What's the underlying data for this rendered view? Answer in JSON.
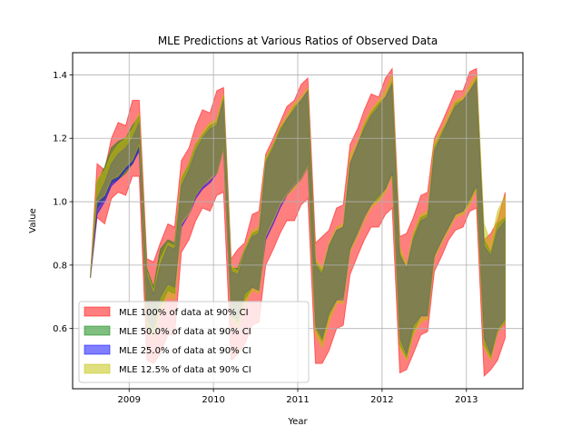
{
  "chart_data": {
    "type": "area",
    "title": "MLE Predictions at Various Ratios of Observed Data",
    "xlabel": "Year",
    "ylabel": "Value",
    "xlim": [
      2008.33,
      2013.67
    ],
    "ylim": [
      0.41,
      1.47
    ],
    "x_ticks": [
      2009,
      2010,
      2011,
      2012,
      2013
    ],
    "x_tick_labels": [
      "2009",
      "2010",
      "2011",
      "2012",
      "2013"
    ],
    "y_ticks": [
      0.6,
      0.8,
      1.0,
      1.2,
      1.4
    ],
    "y_tick_labels": [
      "0.6",
      "0.8",
      "1.0",
      "1.2",
      "1.4"
    ],
    "grid": true,
    "legend_position": "lower-left",
    "x": [
      2008.54,
      2008.62,
      2008.71,
      2008.79,
      2008.87,
      2008.96,
      2009.04,
      2009.12,
      2009.21,
      2009.29,
      2009.37,
      2009.46,
      2009.54,
      2009.62,
      2009.71,
      2009.79,
      2009.87,
      2009.96,
      2010.04,
      2010.12,
      2010.21,
      2010.29,
      2010.37,
      2010.46,
      2010.54,
      2010.62,
      2010.71,
      2010.79,
      2010.87,
      2010.96,
      2011.04,
      2011.12,
      2011.21,
      2011.29,
      2011.37,
      2011.46,
      2011.54,
      2011.62,
      2011.71,
      2011.79,
      2011.87,
      2011.96,
      2012.04,
      2012.12,
      2012.21,
      2012.29,
      2012.37,
      2012.46,
      2012.54,
      2012.62,
      2012.71,
      2012.79,
      2012.87,
      2012.96,
      2013.04,
      2013.12,
      2013.21,
      2013.29,
      2013.37,
      2013.46
    ],
    "series": [
      {
        "name": "MLE 100% of data at 90% CI",
        "color": "#ff0000",
        "upper": [
          0.76,
          1.12,
          1.1,
          1.2,
          1.25,
          1.24,
          1.32,
          1.32,
          0.82,
          0.81,
          0.87,
          0.93,
          0.92,
          1.13,
          1.17,
          1.24,
          1.29,
          1.28,
          1.35,
          1.36,
          0.82,
          0.85,
          0.87,
          0.96,
          0.97,
          1.15,
          1.2,
          1.25,
          1.3,
          1.32,
          1.37,
          1.39,
          0.87,
          0.89,
          0.91,
          0.98,
          0.99,
          1.18,
          1.23,
          1.29,
          1.34,
          1.33,
          1.39,
          1.42,
          0.89,
          0.9,
          0.95,
          1.02,
          1.03,
          1.2,
          1.25,
          1.3,
          1.35,
          1.35,
          1.41,
          1.42,
          0.88,
          0.9,
          0.94,
          1.03
        ],
        "lower": [
          0.76,
          0.95,
          0.93,
          1.01,
          1.03,
          1.02,
          1.08,
          1.08,
          0.5,
          0.49,
          0.52,
          0.58,
          0.58,
          0.84,
          0.88,
          0.94,
          0.98,
          0.97,
          1.02,
          1.03,
          0.5,
          0.52,
          0.55,
          0.61,
          0.62,
          0.8,
          0.85,
          0.9,
          0.94,
          0.94,
          0.99,
          1.01,
          0.49,
          0.49,
          0.53,
          0.6,
          0.61,
          0.77,
          0.83,
          0.88,
          0.92,
          0.92,
          0.96,
          0.98,
          0.46,
          0.47,
          0.52,
          0.58,
          0.59,
          0.78,
          0.83,
          0.88,
          0.91,
          0.92,
          0.97,
          0.98,
          0.45,
          0.47,
          0.5,
          0.57
        ]
      },
      {
        "name": "MLE 50.0% of data at 90% CI",
        "color": "#008000",
        "upper": [
          0.76,
          1.06,
          1.11,
          1.17,
          1.19,
          1.2,
          1.24,
          1.27,
          0.79,
          0.73,
          0.85,
          0.88,
          0.87,
          1.07,
          1.12,
          1.18,
          1.21,
          1.24,
          1.25,
          1.33,
          0.79,
          0.79,
          0.85,
          0.9,
          0.91,
          1.13,
          1.18,
          1.23,
          1.26,
          1.3,
          1.32,
          1.35,
          0.81,
          0.78,
          0.86,
          0.91,
          0.92,
          1.12,
          1.18,
          1.24,
          1.28,
          1.31,
          1.33,
          1.38,
          0.84,
          0.79,
          0.89,
          0.95,
          0.96,
          1.17,
          1.22,
          1.26,
          1.31,
          1.32,
          1.35,
          1.39,
          0.88,
          0.84,
          0.93,
          0.95
        ],
        "lower": [
          0.76,
          0.98,
          1.01,
          1.06,
          1.07,
          1.09,
          1.12,
          1.17,
          0.6,
          0.58,
          0.67,
          0.72,
          0.71,
          0.94,
          0.97,
          1.02,
          1.05,
          1.08,
          1.09,
          1.17,
          0.64,
          0.62,
          0.69,
          0.73,
          0.72,
          0.9,
          0.95,
          1.0,
          1.03,
          1.06,
          1.08,
          1.12,
          0.6,
          0.56,
          0.64,
          0.69,
          0.7,
          0.85,
          0.91,
          0.96,
          0.99,
          1.01,
          1.04,
          1.09,
          0.55,
          0.51,
          0.59,
          0.64,
          0.64,
          0.83,
          0.88,
          0.92,
          0.96,
          0.97,
          1.0,
          1.05,
          0.55,
          0.51,
          0.59,
          0.62
        ]
      },
      {
        "name": "MLE 25.0% of data at 90% CI",
        "color": "#0000ff",
        "upper": [
          0.76,
          1.01,
          1.06,
          1.12,
          1.15,
          1.17,
          1.2,
          1.25,
          0.77,
          0.71,
          0.8,
          0.86,
          0.85,
          1.05,
          1.1,
          1.16,
          1.2,
          1.23,
          1.24,
          1.32,
          0.78,
          0.77,
          0.84,
          0.89,
          0.9,
          1.12,
          1.17,
          1.22,
          1.26,
          1.29,
          1.32,
          1.35,
          0.8,
          0.77,
          0.86,
          0.91,
          0.92,
          1.12,
          1.18,
          1.23,
          1.27,
          1.3,
          1.33,
          1.37,
          0.83,
          0.79,
          0.88,
          0.94,
          0.95,
          1.16,
          1.21,
          1.26,
          1.3,
          1.32,
          1.35,
          1.38,
          0.86,
          0.83,
          0.91,
          0.94
        ],
        "lower": [
          0.76,
          0.96,
          1.0,
          1.05,
          1.07,
          1.1,
          1.12,
          1.16,
          0.63,
          0.6,
          0.7,
          0.74,
          0.73,
          0.92,
          0.96,
          1.01,
          1.04,
          1.06,
          1.09,
          1.17,
          0.64,
          0.63,
          0.71,
          0.73,
          0.72,
          0.88,
          0.93,
          0.98,
          1.02,
          1.05,
          1.07,
          1.11,
          0.61,
          0.57,
          0.65,
          0.69,
          0.69,
          0.85,
          0.9,
          0.95,
          0.99,
          1.02,
          1.04,
          1.09,
          0.57,
          0.52,
          0.61,
          0.64,
          0.64,
          0.83,
          0.88,
          0.92,
          0.96,
          0.97,
          1.01,
          1.05,
          0.57,
          0.52,
          0.6,
          0.63
        ]
      },
      {
        "name": "MLE 12.5% of data at 90% CI",
        "color": "#bfbf00",
        "upper": [
          0.76,
          1.07,
          1.1,
          1.15,
          1.18,
          1.2,
          1.23,
          1.28,
          0.78,
          0.72,
          0.82,
          0.87,
          0.86,
          1.08,
          1.12,
          1.18,
          1.22,
          1.25,
          1.26,
          1.34,
          0.8,
          0.78,
          0.85,
          0.91,
          0.92,
          1.14,
          1.18,
          1.24,
          1.27,
          1.31,
          1.33,
          1.36,
          0.82,
          0.79,
          0.87,
          0.92,
          0.93,
          1.15,
          1.19,
          1.25,
          1.29,
          1.32,
          1.35,
          1.4,
          0.86,
          0.8,
          0.9,
          0.96,
          0.97,
          1.19,
          1.23,
          1.28,
          1.32,
          1.33,
          1.37,
          1.4,
          0.93,
          0.87,
          0.97,
          1.02
        ],
        "lower": [
          0.76,
          1.0,
          1.02,
          1.07,
          1.08,
          1.11,
          1.13,
          1.18,
          0.61,
          0.57,
          0.65,
          0.7,
          0.69,
          0.93,
          0.96,
          1.02,
          1.05,
          1.07,
          1.09,
          1.17,
          0.63,
          0.6,
          0.67,
          0.72,
          0.71,
          0.89,
          0.94,
          0.99,
          1.02,
          1.04,
          1.07,
          1.11,
          0.58,
          0.54,
          0.62,
          0.68,
          0.68,
          0.84,
          0.89,
          0.94,
          0.98,
          1.0,
          1.03,
          1.08,
          0.54,
          0.5,
          0.58,
          0.62,
          0.63,
          0.82,
          0.87,
          0.91,
          0.95,
          0.96,
          0.99,
          1.04,
          0.54,
          0.5,
          0.59,
          0.62
        ]
      }
    ]
  }
}
